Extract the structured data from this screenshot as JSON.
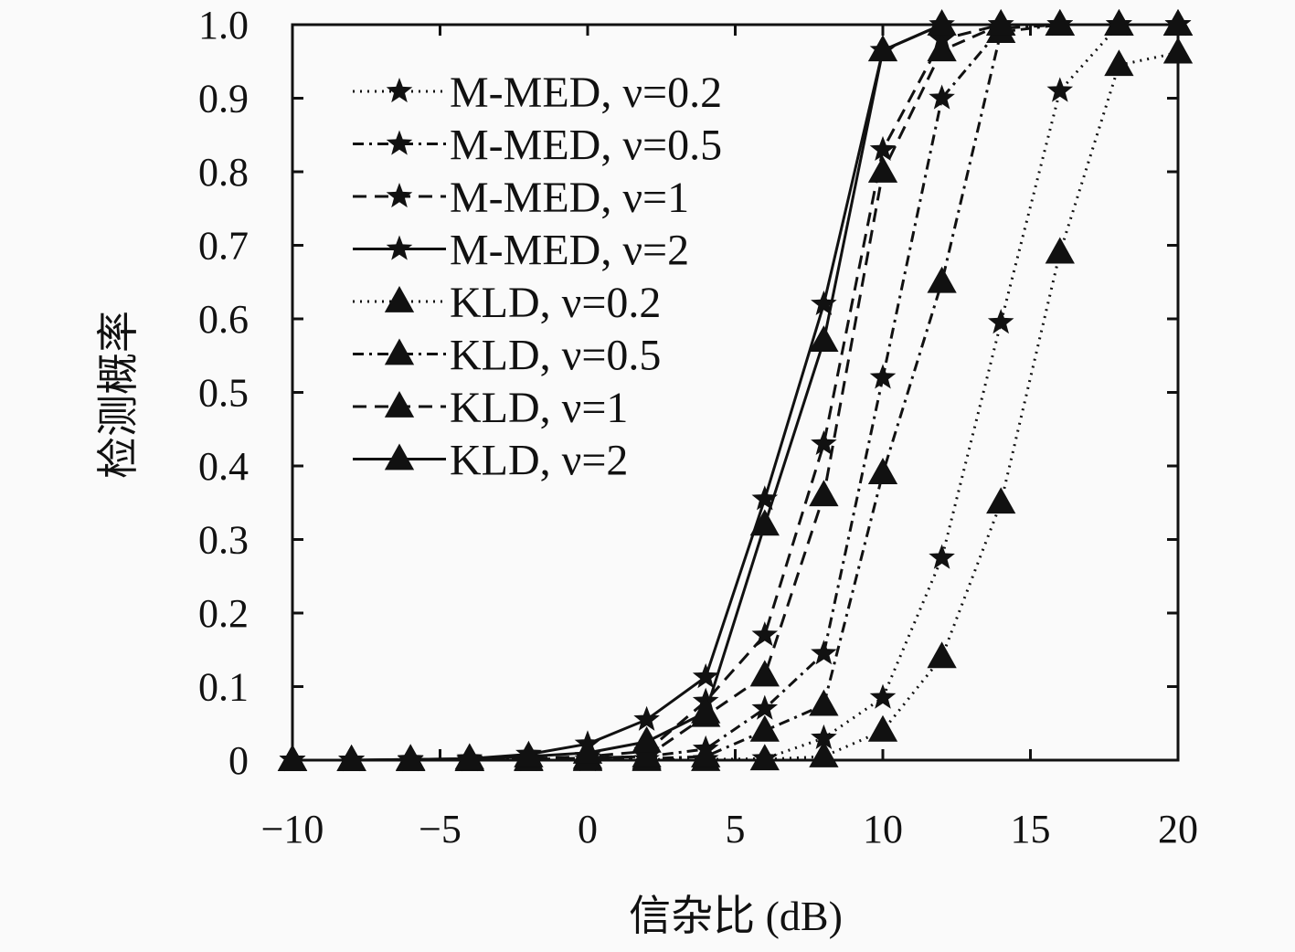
{
  "chart_data": {
    "type": "line",
    "title": "",
    "xlabel": "信杂比 (dB)",
    "ylabel": "检测概率",
    "xlim": [
      -10,
      20
    ],
    "ylim": [
      0,
      1
    ],
    "xticks": [
      -10,
      -5,
      0,
      5,
      10,
      15,
      20
    ],
    "xtick_labels": [
      "−10",
      "−5",
      "0",
      "5",
      "10",
      "15",
      "20"
    ],
    "yticks": [
      0,
      0.1,
      0.2,
      0.3,
      0.4,
      0.5,
      0.6,
      0.7,
      0.8,
      0.9,
      1.0
    ],
    "ytick_labels": [
      "0",
      "0.1",
      "0.2",
      "0.3",
      "0.4",
      "0.5",
      "0.6",
      "0.7",
      "0.8",
      "0.9",
      "1.0"
    ],
    "grid": false,
    "legend_position": "top-left",
    "x": [
      -10,
      -8,
      -6,
      -4,
      -2,
      0,
      2,
      4,
      6,
      8,
      10,
      12,
      14,
      16,
      18,
      20
    ],
    "series": [
      {
        "name": "M-MED, ν=0.2",
        "marker": "star",
        "line": "dotted",
        "values": [
          0,
          0,
          0,
          0,
          0,
          0,
          0.001,
          0.001,
          0.002,
          0.03,
          0.085,
          0.275,
          0.595,
          0.91,
          1.0,
          1.0
        ]
      },
      {
        "name": "M-MED, ν=0.5",
        "marker": "star",
        "line": "dashdot",
        "values": [
          0,
          0,
          0,
          0,
          0.001,
          0.003,
          0.005,
          0.015,
          0.07,
          0.145,
          0.52,
          0.9,
          0.995,
          1.0,
          1.0,
          1.0
        ]
      },
      {
        "name": "M-MED, ν=1",
        "marker": "star",
        "line": "dashed",
        "values": [
          0,
          0,
          0,
          0,
          0.002,
          0.005,
          0.012,
          0.08,
          0.17,
          0.43,
          0.83,
          0.98,
          1.0,
          1.0,
          1.0,
          1.0
        ]
      },
      {
        "name": "M-MED, ν=2",
        "marker": "star",
        "line": "solid",
        "values": [
          0,
          0,
          0.001,
          0.002,
          0.008,
          0.022,
          0.055,
          0.113,
          0.355,
          0.62,
          0.965,
          1.0,
          1.0,
          1.0,
          1.0,
          1.0
        ]
      },
      {
        "name": "KLD, ν=0.2",
        "marker": "triangle",
        "line": "dotted",
        "values": [
          0,
          0,
          0,
          0,
          0,
          0,
          0,
          0,
          0.001,
          0.005,
          0.04,
          0.14,
          0.35,
          0.69,
          0.945,
          0.962
        ]
      },
      {
        "name": "KLD, ν=0.5",
        "marker": "triangle",
        "line": "dashdot",
        "values": [
          0,
          0,
          0,
          0,
          0,
          0.001,
          0.002,
          0.005,
          0.04,
          0.075,
          0.39,
          0.65,
          0.99,
          1.0,
          1.0,
          1.0
        ]
      },
      {
        "name": "KLD, ν=1",
        "marker": "triangle",
        "line": "dashed",
        "values": [
          0,
          0,
          0,
          0,
          0.001,
          0.003,
          0.005,
          0.06,
          0.115,
          0.36,
          0.8,
          0.965,
          1.0,
          1.0,
          1.0,
          1.0
        ]
      },
      {
        "name": "KLD, ν=2",
        "marker": "triangle",
        "line": "solid",
        "values": [
          0,
          0,
          0.001,
          0.002,
          0.005,
          0.01,
          0.025,
          0.065,
          0.32,
          0.57,
          0.965,
          1.0,
          1.0,
          1.0,
          1.0,
          1.0
        ]
      }
    ]
  }
}
